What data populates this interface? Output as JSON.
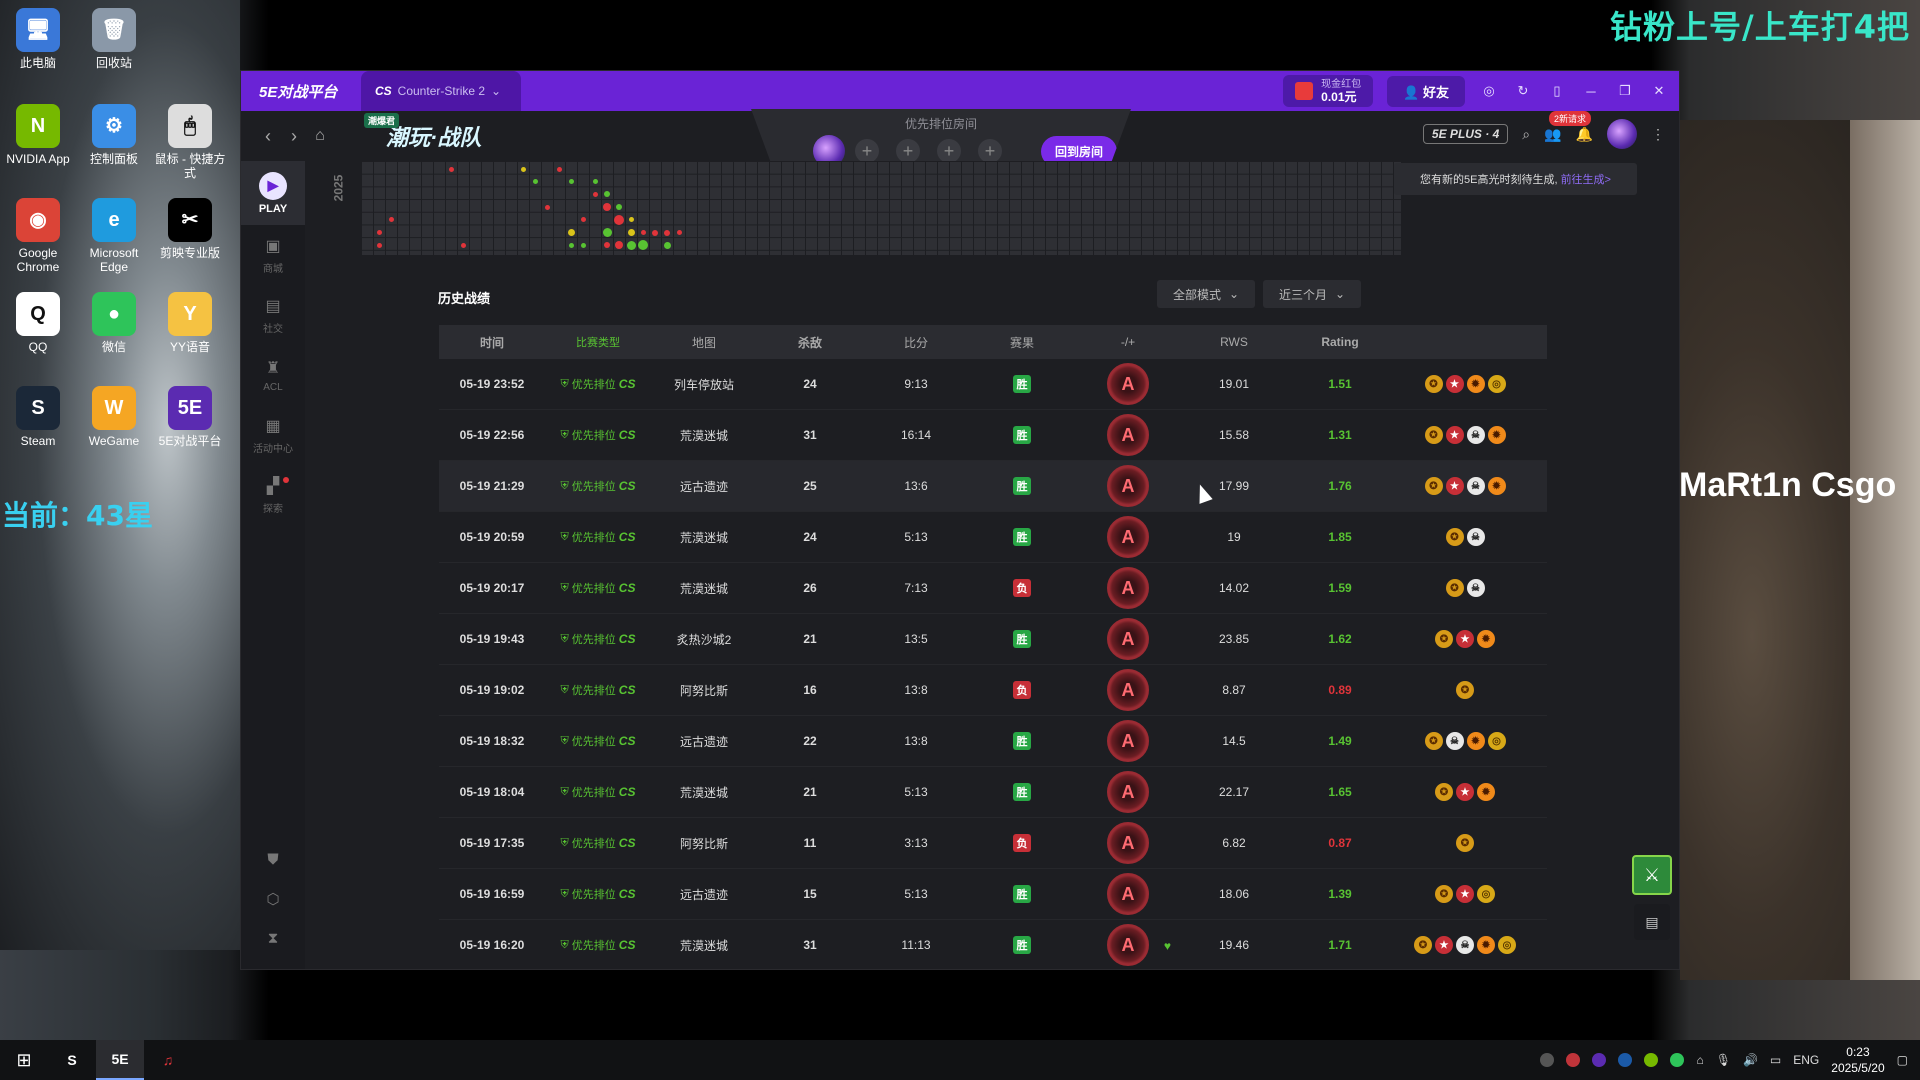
{
  "desktop": {
    "icons": [
      {
        "label": "此电脑",
        "glyph": "🖥",
        "color": "#3a78d8"
      },
      {
        "label": "回收站",
        "glyph": "🗑",
        "color": "#8a98a8"
      },
      {
        "label": "NVIDIA App",
        "glyph": "N",
        "color": "#76b900"
      },
      {
        "label": "控制面板",
        "glyph": "⚙",
        "color": "#3a8ee6"
      },
      {
        "label": "鼠标 - 快捷方式",
        "glyph": "🖱",
        "color": "#dddddd"
      },
      {
        "label": "Google Chrome",
        "glyph": "◉",
        "color": "#db4437"
      },
      {
        "label": "Microsoft Edge",
        "glyph": "e",
        "color": "#1f9bde"
      },
      {
        "label": "剪映专业版",
        "glyph": "✂",
        "color": "#000000"
      },
      {
        "label": "QQ",
        "glyph": "Q",
        "color": "#ffffff"
      },
      {
        "label": "微信",
        "glyph": "●",
        "color": "#2ec45a"
      },
      {
        "label": "YY语音",
        "glyph": "Y",
        "color": "#f5c242"
      },
      {
        "label": "Steam",
        "glyph": "S",
        "color": "#1b2838"
      },
      {
        "label": "WeGame",
        "glyph": "W",
        "color": "#f5a623"
      },
      {
        "label": "5E对战平台",
        "glyph": "5E",
        "color": "#5b2bb1"
      }
    ]
  },
  "overlay": {
    "title": "钻粉上号/上车打4把",
    "star_label": "当前：",
    "star_value": "43星",
    "tiktok_name": "MaRt1n Csgo"
  },
  "app": {
    "brand": "5E对战平台",
    "game_tab": "Counter-Strike 2",
    "game_tab_logo": "CS",
    "redpack_label": "现金红包",
    "redpack_value": "0.01元",
    "friends_label": "好友",
    "banner_tag": "潮爆君",
    "banner_text": "潮玩·战队",
    "lobby_title": "优先排位房间",
    "lobby_back": "回到房间",
    "plus_badge": "5E PLUS · 4",
    "request_badge": "2新请求",
    "tooltip_text": "您有新的5E高光时刻待生成,",
    "tooltip_link": "前往生成>"
  },
  "sidebar": {
    "play": "PLAY",
    "items": [
      {
        "label": "商城",
        "icon": "shop-icon",
        "glyph": "▣"
      },
      {
        "label": "社交",
        "icon": "social-icon",
        "glyph": "▤"
      },
      {
        "label": "ACL",
        "icon": "acl-icon",
        "glyph": "♜"
      },
      {
        "label": "活动中心",
        "icon": "gift-icon",
        "glyph": "▦"
      },
      {
        "label": "探索",
        "icon": "explore-icon",
        "glyph": "▞"
      }
    ]
  },
  "heatmap": {
    "year": "2025"
  },
  "history": {
    "title": "历史战绩",
    "filter_mode": "全部模式",
    "filter_range": "近三个月",
    "columns": [
      "时间",
      "比赛类型",
      "地图",
      "杀敌",
      "比分",
      "赛果",
      "-/+",
      "RWS",
      "Rating"
    ],
    "type_label": "优先排位",
    "type_logo": "CS",
    "win_label": "胜",
    "loss_label": "负",
    "rank_letter": "A",
    "rows": [
      {
        "time": "05-19 23:52",
        "map": "列车停放站",
        "kills": "24",
        "score": "9:13",
        "result": "win",
        "rws": "19.01",
        "rating": "1.51",
        "rating_class": "good",
        "heart": false,
        "medals": [
          "gold",
          "red",
          "flame",
          "coin"
        ]
      },
      {
        "time": "05-19 22:56",
        "map": "荒漠迷城",
        "kills": "31",
        "score": "16:14",
        "result": "win",
        "rws": "15.58",
        "rating": "1.31",
        "rating_class": "good",
        "heart": false,
        "medals": [
          "gold",
          "red",
          "skull",
          "flame"
        ]
      },
      {
        "time": "05-19 21:29",
        "map": "远古遗迹",
        "kills": "25",
        "score": "13:6",
        "result": "win",
        "rws": "17.99",
        "rating": "1.76",
        "rating_class": "good",
        "heart": false,
        "medals": [
          "gold",
          "red",
          "skull",
          "flame"
        ]
      },
      {
        "time": "05-19 20:59",
        "map": "荒漠迷城",
        "kills": "24",
        "score": "5:13",
        "result": "win",
        "rws": "19",
        "rating": "1.85",
        "rating_class": "good",
        "heart": false,
        "medals": [
          "gold",
          "skull"
        ]
      },
      {
        "time": "05-19 20:17",
        "map": "荒漠迷城",
        "kills": "26",
        "score": "7:13",
        "result": "loss",
        "rws": "14.02",
        "rating": "1.59",
        "rating_class": "good",
        "heart": false,
        "medals": [
          "gold",
          "skull"
        ]
      },
      {
        "time": "05-19 19:43",
        "map": "炙热沙城2",
        "kills": "21",
        "score": "13:5",
        "result": "win",
        "rws": "23.85",
        "rating": "1.62",
        "rating_class": "good",
        "heart": false,
        "medals": [
          "gold",
          "red",
          "flame"
        ]
      },
      {
        "time": "05-19 19:02",
        "map": "阿努比斯",
        "kills": "16",
        "score": "13:8",
        "result": "loss",
        "rws": "8.87",
        "rating": "0.89",
        "rating_class": "bad",
        "heart": false,
        "medals": [
          "gold"
        ]
      },
      {
        "time": "05-19 18:32",
        "map": "远古遗迹",
        "kills": "22",
        "score": "13:8",
        "result": "win",
        "rws": "14.5",
        "rating": "1.49",
        "rating_class": "good",
        "heart": false,
        "medals": [
          "gold",
          "skull",
          "flame",
          "coin"
        ]
      },
      {
        "time": "05-19 18:04",
        "map": "荒漠迷城",
        "kills": "21",
        "score": "5:13",
        "result": "win",
        "rws": "22.17",
        "rating": "1.65",
        "rating_class": "good",
        "heart": false,
        "medals": [
          "gold",
          "red",
          "flame"
        ]
      },
      {
        "time": "05-19 17:35",
        "map": "阿努比斯",
        "kills": "11",
        "score": "3:13",
        "result": "loss",
        "rws": "6.82",
        "rating": "0.87",
        "rating_class": "bad",
        "heart": false,
        "medals": [
          "gold"
        ]
      },
      {
        "time": "05-19 16:59",
        "map": "远古遗迹",
        "kills": "15",
        "score": "5:13",
        "result": "win",
        "rws": "18.06",
        "rating": "1.39",
        "rating_class": "good",
        "heart": false,
        "medals": [
          "gold",
          "red",
          "coin"
        ]
      },
      {
        "time": "05-19 16:20",
        "map": "荒漠迷城",
        "kills": "31",
        "score": "11:13",
        "result": "win",
        "rws": "19.46",
        "rating": "1.71",
        "rating_class": "good",
        "heart": true,
        "medals": [
          "gold",
          "red",
          "skull",
          "flame",
          "coin"
        ]
      }
    ]
  },
  "taskbar": {
    "apps": [
      {
        "name": "steam-taskbar-icon",
        "glyph": "S",
        "active": false
      },
      {
        "name": "5e-taskbar-icon",
        "glyph": "5E",
        "active": true
      },
      {
        "name": "netease-music-taskbar-icon",
        "glyph": "♫",
        "active": false
      }
    ],
    "lang": "ENG",
    "time": "0:23",
    "date": "2025/5/20"
  },
  "colors": {
    "accent": "#6a23d6",
    "win": "#28a745",
    "loss": "#c72f37",
    "rating_good": "#58c332",
    "rating_bad": "#e0343a"
  }
}
